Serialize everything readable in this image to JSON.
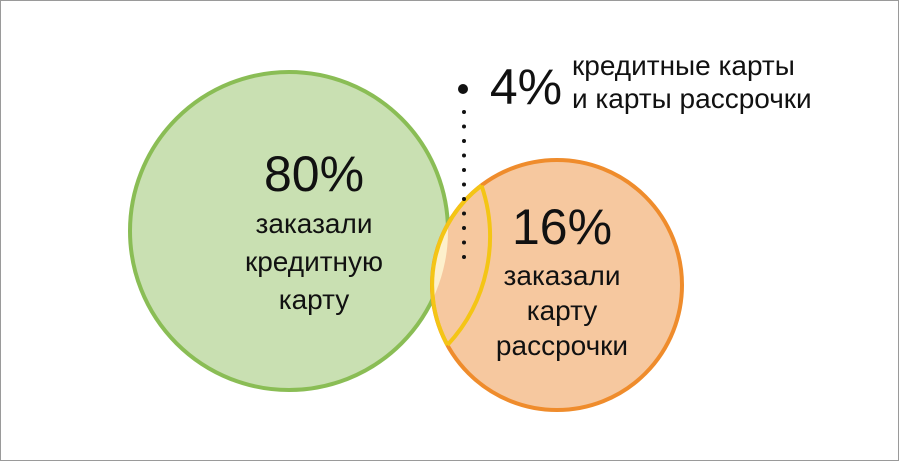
{
  "diagram": {
    "left_circle": {
      "percent": "80%",
      "label_lines": [
        "заказали",
        "кредитную",
        "карту"
      ],
      "fill": "#c9e0b2",
      "stroke": "#8abd55"
    },
    "right_circle": {
      "percent": "16%",
      "label_lines": [
        "заказали",
        "карту",
        "рассрочки"
      ],
      "fill": "#f6c89f",
      "stroke": "#ef8c2c"
    },
    "overlap": {
      "percent": "4%",
      "label_lines": [
        "кредитные карты",
        "и карты рассрочки"
      ],
      "fill": "#fdf0cc",
      "stroke": "#f4c515"
    },
    "leader_color": "#111111"
  }
}
